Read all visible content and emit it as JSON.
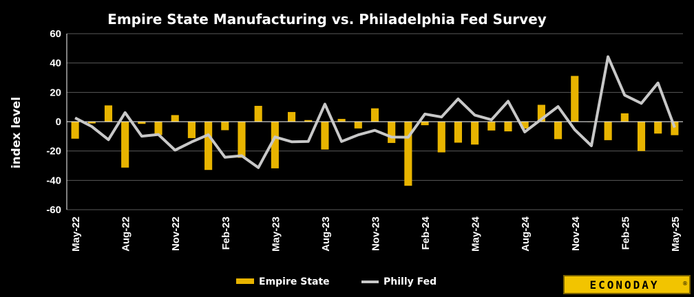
{
  "chart_data": {
    "type": "bar",
    "title": "Empire State Manufacturing vs. Philadelphia Fed Survey",
    "ylabel": "index level",
    "ylim": [
      -60,
      60
    ],
    "yticks": [
      60,
      40,
      20,
      0,
      -20,
      -40,
      -60
    ],
    "x": [
      "May-22",
      "Jun-22",
      "Jul-22",
      "Aug-22",
      "Sep-22",
      "Oct-22",
      "Nov-22",
      "Dec-22",
      "Jan-23",
      "Feb-23",
      "Mar-23",
      "Apr-23",
      "May-23",
      "Jun-23",
      "Jul-23",
      "Aug-23",
      "Sep-23",
      "Oct-23",
      "Nov-23",
      "Dec-23",
      "Jan-24",
      "Feb-24",
      "Mar-24",
      "Apr-24",
      "May-24",
      "Jun-24",
      "Jul-24",
      "Aug-24",
      "Sep-24",
      "Oct-24",
      "Nov-24",
      "Dec-24",
      "Jan-25",
      "Feb-25",
      "Mar-25",
      "Apr-25",
      "May-25"
    ],
    "xtick_labels": [
      "May-22",
      "Aug-22",
      "Nov-22",
      "Feb-23",
      "May-23",
      "Aug-23",
      "Nov-23",
      "Feb-24",
      "May-24",
      "Aug-24",
      "Nov-24",
      "Feb-25",
      "May-25"
    ],
    "series": [
      {
        "name": "Empire State",
        "kind": "bar",
        "color": "#e8b400",
        "values": [
          -11.6,
          -1.2,
          11.1,
          -31.3,
          -1.5,
          -9.1,
          4.5,
          -11.2,
          -32.9,
          -5.8,
          -24.6,
          10.8,
          -31.8,
          6.6,
          1.1,
          -19.0,
          1.9,
          -4.6,
          9.1,
          -14.5,
          -43.7,
          -2.4,
          -20.9,
          -14.3,
          -15.6,
          -6.0,
          -6.6,
          -4.7,
          11.5,
          -11.9,
          31.2,
          0.2,
          -12.6,
          5.7,
          -20.0,
          -8.1,
          -9.2
        ]
      },
      {
        "name": "Philly Fed",
        "kind": "line",
        "color": "#c8c8c8",
        "values": [
          2.6,
          -3.3,
          -12.3,
          6.2,
          -9.9,
          -8.7,
          -19.4,
          -13.8,
          -8.9,
          -24.3,
          -23.2,
          -31.3,
          -10.4,
          -13.7,
          -13.5,
          12.0,
          -13.5,
          -9.0,
          -5.9,
          -10.5,
          -10.6,
          5.2,
          3.2,
          15.5,
          4.5,
          1.3,
          13.9,
          -7.0,
          1.7,
          10.3,
          -5.5,
          -16.4,
          44.3,
          18.1,
          12.5,
          26.4,
          -4.0
        ]
      }
    ],
    "legend": "bottom-center",
    "grid": true
  },
  "brand": {
    "logo_text": "ECONODAY",
    "mark": "®"
  }
}
